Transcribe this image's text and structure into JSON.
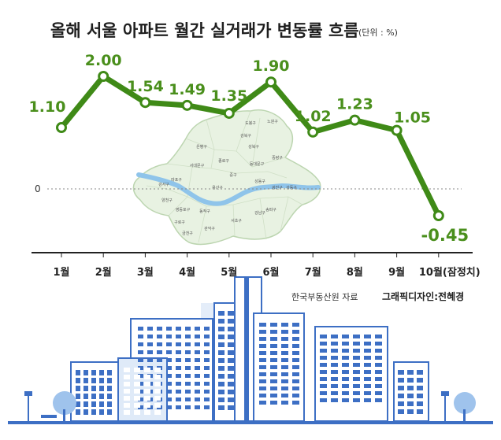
{
  "chart_data": {
    "type": "line",
    "title": "올해 서울 아파트 월간 실거래가 변동률 흐름",
    "unit_note": "(단위 : %)",
    "categories": [
      "1월",
      "2월",
      "3월",
      "4월",
      "5월",
      "6월",
      "7월",
      "8월",
      "9월",
      "10월(잠정치)"
    ],
    "values": [
      1.1,
      2.0,
      1.54,
      1.49,
      1.35,
      1.9,
      1.02,
      1.23,
      1.05,
      -0.45
    ],
    "value_labels": [
      "1.10",
      "2.00",
      "1.54",
      "1.49",
      "1.35",
      "1.90",
      "1.02",
      "1.23",
      "1.05",
      "-0.45"
    ],
    "zero_label": "0",
    "ylim": [
      -0.45,
      2.0
    ],
    "line_color": "#3f8a17",
    "label_color": "#4a8f1c",
    "grid": false,
    "legend": "none"
  },
  "map": {
    "districts": [
      "도봉구",
      "노원구",
      "강북구",
      "은평구",
      "성북구",
      "중랑구",
      "종로구",
      "동대문구",
      "서대문구",
      "중구",
      "성동구",
      "광진구",
      "마포구",
      "용산구",
      "강서구",
      "양천구",
      "영등포구",
      "동작구",
      "강동구",
      "구로구",
      "금천구",
      "관악구",
      "서초구",
      "강남구",
      "송파구"
    ]
  },
  "source": "한국부동산원 자료",
  "credit": "그래픽디자인:전혜경",
  "colors": {
    "building_blue": "#3d6fc4",
    "building_light": "#dfeaf8",
    "building_mid": "#b9cfee",
    "ground": "#3d6fc4",
    "tree": "#9fc3ec",
    "map_fill": "#e8f2e2",
    "river": "#8fc4ea"
  }
}
